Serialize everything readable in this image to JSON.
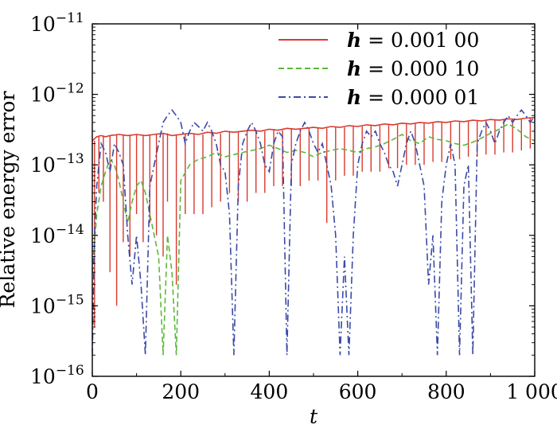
{
  "chart_data": {
    "type": "line",
    "title": "",
    "xlabel": "t",
    "ylabel": "Relative energy error",
    "xlim": [
      0,
      1000
    ],
    "ylim": [
      1e-16,
      1e-11
    ],
    "yscale": "log",
    "grid": false,
    "legend_position": "top-right",
    "x_ticks": [
      0,
      200,
      400,
      600,
      800,
      1000
    ],
    "x_tick_labels": [
      "0",
      "200",
      "400",
      "600",
      "800",
      "1 000"
    ],
    "y_ticks": [
      1e-16,
      1e-15,
      1e-14,
      1e-13,
      1e-12,
      1e-11
    ],
    "y_tick_labels": [
      {
        "base": "10",
        "exp": "−16"
      },
      {
        "base": "10",
        "exp": "−15"
      },
      {
        "base": "10",
        "exp": "−14"
      },
      {
        "base": "10",
        "exp": "−13"
      },
      {
        "base": "10",
        "exp": "−12"
      },
      {
        "base": "10",
        "exp": "−11"
      }
    ],
    "series": [
      {
        "name": "h = 0.001 00",
        "legend_var": "h",
        "legend_value": " = 0.001 00",
        "color": "#d83a2e",
        "dash": "solid",
        "x": [
          0,
          10,
          20,
          30,
          40,
          60,
          80,
          100,
          120,
          140,
          160,
          180,
          200,
          220,
          240,
          260,
          280,
          300,
          320,
          340,
          360,
          380,
          400,
          420,
          440,
          460,
          480,
          500,
          520,
          540,
          560,
          580,
          600,
          620,
          640,
          660,
          680,
          700,
          720,
          740,
          760,
          780,
          800,
          820,
          840,
          860,
          880,
          900,
          920,
          940,
          960,
          980,
          1000
        ],
        "y": [
          2.2e-13,
          2.5e-13,
          2.6e-13,
          2.5e-13,
          2.6e-13,
          2.7e-13,
          2.6e-13,
          2.7e-13,
          2.6e-13,
          2.7e-13,
          2.8e-13,
          2.6e-13,
          2.7e-13,
          2.8e-13,
          2.7e-13,
          2.9e-13,
          2.8e-13,
          3e-13,
          2.9e-13,
          3e-13,
          3.1e-13,
          3e-13,
          3.2e-13,
          3.1e-13,
          3.3e-13,
          3.2e-13,
          3.3e-13,
          3.4e-13,
          3.3e-13,
          3.5e-13,
          3.4e-13,
          3.6e-13,
          3.5e-13,
          3.7e-13,
          3.6e-13,
          3.8e-13,
          3.7e-13,
          3.9e-13,
          3.8e-13,
          4e-13,
          3.9e-13,
          4.1e-13,
          4e-13,
          4.2e-13,
          4.1e-13,
          4.3e-13,
          4.2e-13,
          4.4e-13,
          4.3e-13,
          4.5e-13,
          4.4e-13,
          4.6e-13,
          4.7e-13
        ],
        "dips": [
          [
            5,
            5e-16
          ],
          [
            15,
            4e-14
          ],
          [
            25,
            3e-14
          ],
          [
            40,
            3e-15
          ],
          [
            55,
            1e-15
          ],
          [
            70,
            8e-15
          ],
          [
            85,
            5e-15
          ],
          [
            100,
            2e-14
          ],
          [
            115,
            8e-15
          ],
          [
            130,
            1.5e-14
          ],
          [
            145,
            1e-14
          ],
          [
            160,
            5e-15
          ],
          [
            170,
            3e-14
          ],
          [
            190,
            2e-15
          ],
          [
            210,
            2e-14
          ],
          [
            230,
            2e-14
          ],
          [
            250,
            2e-14
          ],
          [
            270,
            2.5e-14
          ],
          [
            290,
            3e-14
          ],
          [
            310,
            4e-14
          ],
          [
            330,
            3e-14
          ],
          [
            350,
            3e-14
          ],
          [
            370,
            4e-14
          ],
          [
            390,
            4e-14
          ],
          [
            410,
            5e-14
          ],
          [
            430,
            5e-14
          ],
          [
            450,
            5e-14
          ],
          [
            470,
            5e-14
          ],
          [
            490,
            6e-14
          ],
          [
            510,
            6e-14
          ],
          [
            530,
            1.5e-14
          ],
          [
            550,
            6e-14
          ],
          [
            570,
            7e-14
          ],
          [
            590,
            7e-14
          ],
          [
            610,
            8e-14
          ],
          [
            630,
            8e-14
          ],
          [
            650,
            8e-14
          ],
          [
            670,
            9e-14
          ],
          [
            690,
            9e-14
          ],
          [
            710,
            1e-13
          ],
          [
            730,
            1e-13
          ],
          [
            750,
            1e-13
          ],
          [
            770,
            1.1e-13
          ],
          [
            790,
            1.1e-13
          ],
          [
            810,
            1.2e-13
          ],
          [
            830,
            1.2e-13
          ],
          [
            850,
            1.3e-13
          ],
          [
            870,
            1.3e-13
          ],
          [
            890,
            1.4e-13
          ],
          [
            910,
            1.4e-13
          ],
          [
            930,
            1.5e-13
          ],
          [
            950,
            1.5e-13
          ],
          [
            970,
            1.6e-13
          ],
          [
            990,
            1.7e-13
          ]
        ]
      },
      {
        "name": "h = 0.000 10",
        "legend_var": "h",
        "legend_value": " = 0.000 10",
        "color": "#5cb83a",
        "dash": "dashed",
        "x": [
          0,
          10,
          20,
          30,
          40,
          50,
          60,
          70,
          80,
          90,
          100,
          110,
          120,
          130,
          140,
          150,
          160,
          170,
          180,
          190,
          200,
          220,
          240,
          260,
          280,
          300,
          320,
          340,
          360,
          380,
          400,
          420,
          440,
          460,
          480,
          500,
          520,
          540,
          560,
          580,
          600,
          620,
          640,
          660,
          680,
          700,
          720,
          740,
          760,
          780,
          800,
          820,
          840,
          860,
          880,
          900,
          920,
          940,
          960,
          980,
          1000
        ],
        "y": [
          3e-15,
          2e-14,
          5e-14,
          8e-14,
          1.2e-13,
          1e-13,
          6e-14,
          3e-14,
          1.5e-14,
          3e-14,
          5e-14,
          6e-14,
          4e-14,
          2e-14,
          1e-14,
          5e-15,
          2e-16,
          1e-14,
          3e-15,
          2e-16,
          6e-14,
          1e-13,
          1.2e-13,
          1.3e-13,
          1.5e-13,
          1.3e-13,
          1.4e-13,
          1.5e-13,
          1.6e-13,
          1.7e-13,
          1.9e-13,
          1.7e-13,
          1.5e-13,
          1.6e-13,
          1.5e-13,
          1.3e-13,
          1.5e-13,
          1.6e-13,
          1.7e-13,
          1.6e-13,
          1.5e-13,
          1.7e-13,
          1.8e-13,
          2e-13,
          2.3e-13,
          2.7e-13,
          2.2e-13,
          2e-13,
          2.5e-13,
          2.3e-13,
          2.2e-13,
          2e-13,
          1.9e-13,
          2.1e-13,
          2.4e-13,
          2.8e-13,
          3.2e-13,
          3.8e-13,
          3.2e-13,
          2.5e-13,
          2.2e-13
        ]
      },
      {
        "name": "h = 0.000 01",
        "legend_var": "h",
        "legend_value": " = 0.000 01",
        "color": "#3a4aa8",
        "dash": "dashdot",
        "x": [
          0,
          5,
          10,
          15,
          20,
          30,
          40,
          50,
          60,
          70,
          80,
          90,
          100,
          110,
          120,
          130,
          140,
          150,
          160,
          170,
          180,
          190,
          200,
          210,
          220,
          230,
          240,
          250,
          260,
          270,
          280,
          290,
          300,
          310,
          320,
          330,
          340,
          350,
          360,
          370,
          380,
          390,
          400,
          410,
          420,
          430,
          440,
          450,
          460,
          470,
          480,
          490,
          500,
          510,
          520,
          530,
          540,
          550,
          560,
          570,
          580,
          590,
          600,
          610,
          620,
          630,
          640,
          650,
          660,
          670,
          680,
          690,
          700,
          710,
          720,
          730,
          740,
          750,
          760,
          770,
          780,
          790,
          800,
          810,
          820,
          830,
          840,
          850,
          860,
          870,
          880,
          890,
          900,
          910,
          920,
          930,
          940,
          950,
          960,
          970,
          980,
          990,
          1000
        ],
        "y": [
          2e-16,
          1e-14,
          5e-14,
          1e-13,
          2e-13,
          1.5e-13,
          8e-14,
          2e-13,
          1.5e-13,
          1e-13,
          1e-14,
          2e-15,
          1e-14,
          2e-15,
          2e-16,
          5e-14,
          1e-13,
          2e-13,
          4e-13,
          5e-13,
          6e-13,
          5e-13,
          4e-13,
          2e-13,
          3e-13,
          4e-13,
          3.5e-13,
          3e-13,
          4e-13,
          3e-13,
          2e-13,
          1e-13,
          8e-14,
          2e-14,
          2e-16,
          5e-14,
          2e-13,
          3e-13,
          4e-13,
          3e-13,
          2e-13,
          1e-13,
          8e-14,
          2e-13,
          3e-13,
          2.5e-13,
          2e-16,
          1e-13,
          2e-13,
          3e-13,
          4e-13,
          3e-13,
          2e-13,
          1.5e-13,
          2e-13,
          1e-13,
          5e-14,
          1e-14,
          2e-16,
          5e-15,
          2e-16,
          1e-14,
          1e-13,
          2e-13,
          3e-13,
          2.5e-13,
          3e-13,
          2e-13,
          1.5e-13,
          1e-13,
          8e-14,
          5e-14,
          1e-13,
          2e-13,
          3e-13,
          2e-13,
          1e-13,
          5e-14,
          2e-15,
          1e-14,
          2e-16,
          3e-14,
          1e-13,
          2e-13,
          1e-13,
          2e-16,
          5e-14,
          1e-13,
          2e-16,
          2e-13,
          3e-13,
          4e-13,
          3e-13,
          2e-13,
          3e-13,
          4e-13,
          5e-13,
          4e-13,
          5e-13,
          6e-13,
          5e-13,
          4e-13,
          5e-13
        ]
      }
    ]
  }
}
